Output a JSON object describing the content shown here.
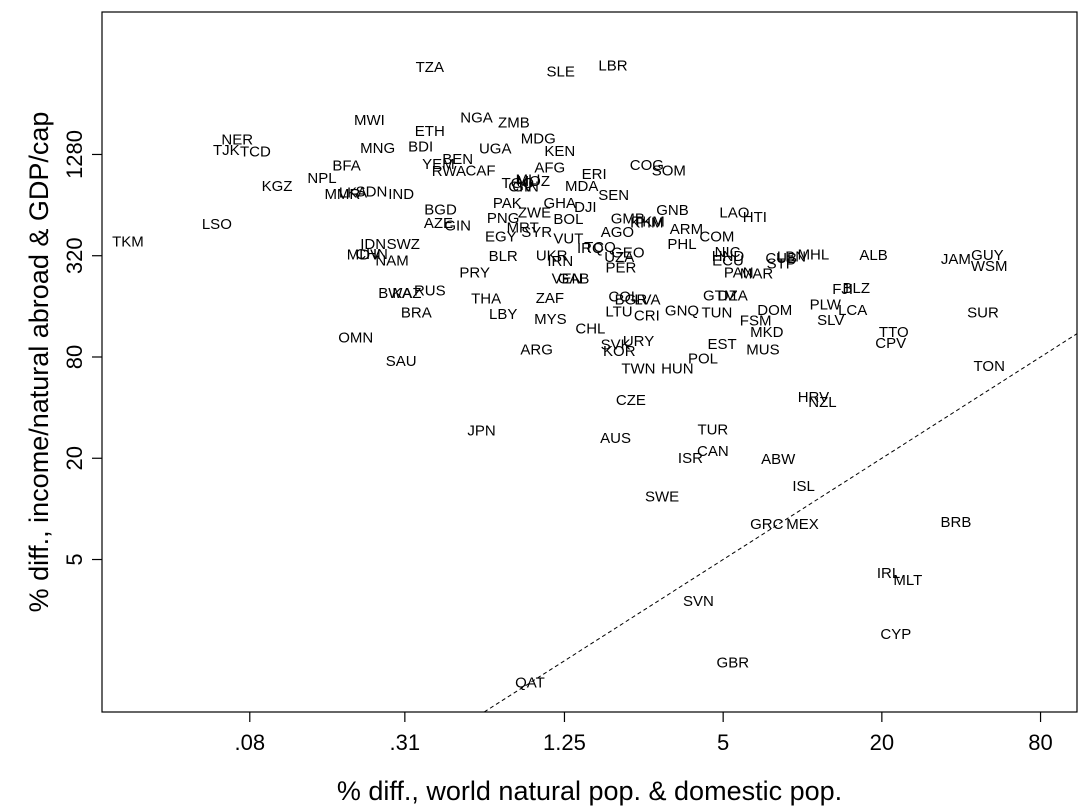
{
  "chart_data": {
    "type": "scatter",
    "title": "",
    "xlabel": "% diff., world natural pop. & domestic pop.",
    "ylabel": "% diff., income/natural abroad & GDP/cap",
    "x_scale": "log",
    "y_scale": "log",
    "xlim": [
      0.022,
      110
    ],
    "ylim": [
      0.62,
      9000
    ],
    "x_ticks": [
      0.08,
      0.31,
      1.25,
      5,
      20,
      80
    ],
    "x_tick_labels": [
      ".08",
      ".31",
      "1.25",
      "5",
      "20",
      "80"
    ],
    "y_ticks": [
      5,
      20,
      80,
      320,
      1280
    ],
    "y_tick_labels": [
      "5",
      "20",
      "80",
      "320",
      "1280"
    ],
    "grid": false,
    "legend": "none",
    "reference_line": {
      "style": "dashed",
      "description": "45-degree line y = x"
    },
    "points": [
      {
        "label": "TZA",
        "x": 0.3855,
        "y": 4220
      },
      {
        "label": "SLE",
        "x": 1.21,
        "y": 3955
      },
      {
        "label": "LBR",
        "x": 1.91,
        "y": 4310
      },
      {
        "label": "MWI",
        "x": 0.2275,
        "y": 2035
      },
      {
        "label": "NGA",
        "x": 0.58,
        "y": 2106
      },
      {
        "label": "ZMB",
        "x": 0.8035,
        "y": 1975
      },
      {
        "label": "NER",
        "x": 0.0717,
        "y": 1565
      },
      {
        "label": "ETH",
        "x": 0.3855,
        "y": 1754
      },
      {
        "label": "MDG",
        "x": 0.9946,
        "y": 1580
      },
      {
        "label": "TJK",
        "x": 0.0652,
        "y": 1351
      },
      {
        "label": "TCD",
        "x": 0.084,
        "y": 1320
      },
      {
        "label": "MNG",
        "x": 0.2444,
        "y": 1385
      },
      {
        "label": "BDI",
        "x": 0.3558,
        "y": 1413
      },
      {
        "label": "UGA",
        "x": 0.6828,
        "y": 1377
      },
      {
        "label": "KEN",
        "x": 1.2,
        "y": 1330
      },
      {
        "label": "BEN",
        "x": 0.4917,
        "y": 1196
      },
      {
        "label": "YEM",
        "x": 0.4157,
        "y": 1112
      },
      {
        "label": "BFA",
        "x": 0.1864,
        "y": 1091
      },
      {
        "label": "RWA",
        "x": 0.4555,
        "y": 1013
      },
      {
        "label": "CAF",
        "x": 0.6003,
        "y": 1019
      },
      {
        "label": "AFG",
        "x": 1.1,
        "y": 1065
      },
      {
        "label": "COG",
        "x": 2.567,
        "y": 1101
      },
      {
        "label": "SOM",
        "x": 3.11,
        "y": 1018
      },
      {
        "label": "ERI",
        "x": 1.62,
        "y": 976
      },
      {
        "label": "NPL",
        "x": 0.1503,
        "y": 922
      },
      {
        "label": "KGZ",
        "x": 0.1015,
        "y": 823
      },
      {
        "label": "TGO",
        "x": 0.8316,
        "y": 859
      },
      {
        "label": "MLI",
        "x": 0.9099,
        "y": 903
      },
      {
        "label": "MOZ",
        "x": 0.9523,
        "y": 886
      },
      {
        "label": "CIV",
        "x": 0.8529,
        "y": 820
      },
      {
        "label": "GIN_1",
        "x": 0.8897,
        "y": 818
      },
      {
        "label": "MDA",
        "x": 1.453,
        "y": 826
      },
      {
        "label": "LKA",
        "x": 0.1971,
        "y": 756
      },
      {
        "label": "SDN",
        "x": 0.2316,
        "y": 768
      },
      {
        "label": "MMR",
        "x": 0.1796,
        "y": 741
      },
      {
        "label": "IND",
        "x": 0.3001,
        "y": 741
      },
      {
        "label": "SEN",
        "x": 1.921,
        "y": 728
      },
      {
        "label": "PAK",
        "x": 0.7589,
        "y": 655
      },
      {
        "label": "GHA",
        "x": 1.2,
        "y": 652
      },
      {
        "label": "DJI",
        "x": 1.5,
        "y": 620
      },
      {
        "label": "ZWE",
        "x": 0.9624,
        "y": 574
      },
      {
        "label": "GNB",
        "x": 3.211,
        "y": 594
      },
      {
        "label": "BGD",
        "x": 0.4234,
        "y": 598
      },
      {
        "label": "LAO",
        "x": 5.516,
        "y": 574
      },
      {
        "label": "HTI",
        "x": 6.596,
        "y": 540
      },
      {
        "label": "PNG",
        "x": 0.7318,
        "y": 533
      },
      {
        "label": "BOL",
        "x": 1.294,
        "y": 525
      },
      {
        "label": "GMB",
        "x": 2.174,
        "y": 530
      },
      {
        "label": "KHM",
        "x": 2.567,
        "y": 501
      },
      {
        "label": "TKM_1",
        "x": 2.613,
        "y": 508
      },
      {
        "label": "LSO",
        "x": 0.06,
        "y": 491
      },
      {
        "label": "AZE",
        "x": 0.4157,
        "y": 499
      },
      {
        "label": "GIN",
        "x": 0.4917,
        "y": 482
      },
      {
        "label": "MRT",
        "x": 0.8678,
        "y": 467
      },
      {
        "label": "ARM",
        "x": 3.628,
        "y": 459
      },
      {
        "label": "SYR",
        "x": 0.9807,
        "y": 441
      },
      {
        "label": "AGO",
        "x": 1.985,
        "y": 440
      },
      {
        "label": "COM",
        "x": 4.735,
        "y": 414
      },
      {
        "label": "EGY",
        "x": 0.7171,
        "y": 414
      },
      {
        "label": "VUT",
        "x": 1.294,
        "y": 403
      },
      {
        "label": "TKM",
        "x": 0.0276,
        "y": 387
      },
      {
        "label": "IDN",
        "x": 0.2351,
        "y": 372
      },
      {
        "label": "SWZ",
        "x": 0.3057,
        "y": 372
      },
      {
        "label": "PHL",
        "x": 3.49,
        "y": 372
      },
      {
        "label": "TCQ",
        "x": 1.704,
        "y": 359
      },
      {
        "label": "IRQ",
        "x": 1.567,
        "y": 353
      },
      {
        "label": "GEO",
        "x": 2.174,
        "y": 333
      },
      {
        "label": "NIC",
        "x": 5.198,
        "y": 334
      },
      {
        "label": "MDV",
        "x": 0.2159,
        "y": 323
      },
      {
        "label": "CHN",
        "x": 0.2318,
        "y": 326
      },
      {
        "label": "UKR",
        "x": 1.118,
        "y": 318
      },
      {
        "label": "BLR",
        "x": 0.7318,
        "y": 316
      },
      {
        "label": "UZA",
        "x": 2.018,
        "y": 312
      },
      {
        "label": "HND",
        "x": 5.216,
        "y": 316
      },
      {
        "label": "MHL",
        "x": 11.0,
        "y": 323
      },
      {
        "label": "ALB",
        "x": 18.6,
        "y": 320
      },
      {
        "label": "JAM",
        "x": 38.2,
        "y": 303
      },
      {
        "label": "GUY",
        "x": 50.3,
        "y": 320
      },
      {
        "label": "CUB",
        "x": 8.3,
        "y": 308
      },
      {
        "label": "LBN",
        "x": 9.08,
        "y": 314
      },
      {
        "label": "NAM",
        "x": 0.2773,
        "y": 298
      },
      {
        "label": "IRN",
        "x": 1.205,
        "y": 295
      },
      {
        "label": "ECU",
        "x": 5.216,
        "y": 297
      },
      {
        "label": "STP",
        "x": 8.3,
        "y": 286
      },
      {
        "label": "WSM",
        "x": 51.1,
        "y": 276
      },
      {
        "label": "PER",
        "x": 2.047,
        "y": 271
      },
      {
        "label": "PRY",
        "x": 0.5705,
        "y": 253
      },
      {
        "label": "PAN",
        "x": 5.729,
        "y": 252
      },
      {
        "label": "MAR",
        "x": 6.693,
        "y": 250
      },
      {
        "label": "VEN",
        "x": 1.279,
        "y": 232
      },
      {
        "label": "GAB",
        "x": 1.354,
        "y": 232
      },
      {
        "label": "FJI",
        "x": 14.2,
        "y": 202
      },
      {
        "label": "BLZ",
        "x": 16.0,
        "y": 204
      },
      {
        "label": "RUS",
        "x": 0.3855,
        "y": 198
      },
      {
        "label": "BWA",
        "x": 0.2847,
        "y": 191
      },
      {
        "label": "KAZ",
        "x": 0.3155,
        "y": 191
      },
      {
        "label": "THA",
        "x": 0.6305,
        "y": 177
      },
      {
        "label": "ZAF",
        "x": 1.101,
        "y": 178
      },
      {
        "label": "COL",
        "x": 2.1,
        "y": 182
      },
      {
        "label": "BGR",
        "x": 2.234,
        "y": 174
      },
      {
        "label": "LVA",
        "x": 2.58,
        "y": 174
      },
      {
        "label": "GTM",
        "x": 4.85,
        "y": 184
      },
      {
        "label": "DZA",
        "x": 5.44,
        "y": 184
      },
      {
        "label": "PLW",
        "x": 12.2,
        "y": 163
      },
      {
        "label": "LCA",
        "x": 15.5,
        "y": 151
      },
      {
        "label": "DOM",
        "x": 7.85,
        "y": 151
      },
      {
        "label": "SUR",
        "x": 48.4,
        "y": 146
      },
      {
        "label": "GNQ",
        "x": 3.49,
        "y": 150
      },
      {
        "label": "TUN",
        "x": 4.735,
        "y": 146
      },
      {
        "label": "LTU",
        "x": 2.013,
        "y": 148
      },
      {
        "label": "CRI",
        "x": 2.567,
        "y": 140
      },
      {
        "label": "BRA",
        "x": 0.3427,
        "y": 146
      },
      {
        "label": "LBY",
        "x": 0.7318,
        "y": 143
      },
      {
        "label": "MYS",
        "x": 1.105,
        "y": 134
      },
      {
        "label": "FSM",
        "x": 6.64,
        "y": 131
      },
      {
        "label": "SLV",
        "x": 12.8,
        "y": 132
      },
      {
        "label": "CHL",
        "x": 1.568,
        "y": 117
      },
      {
        "label": "MKD",
        "x": 7.32,
        "y": 112
      },
      {
        "label": "TTO",
        "x": 22.2,
        "y": 112
      },
      {
        "label": "OMN",
        "x": 0.2018,
        "y": 104
      },
      {
        "label": "URY",
        "x": 2.388,
        "y": 99
      },
      {
        "label": "EST",
        "x": 4.956,
        "y": 95
      },
      {
        "label": "SVK",
        "x": 1.954,
        "y": 94
      },
      {
        "label": "CPV",
        "x": 21.6,
        "y": 96
      },
      {
        "label": "ARG",
        "x": 0.9807,
        "y": 88
      },
      {
        "label": "KOR",
        "x": 2.018,
        "y": 86
      },
      {
        "label": "MUS",
        "x": 7.08,
        "y": 88
      },
      {
        "label": "POL",
        "x": 4.191,
        "y": 78
      },
      {
        "label": "SAU",
        "x": 0.3001,
        "y": 75
      },
      {
        "label": "TON",
        "x": 51.1,
        "y": 70
      },
      {
        "label": "TWN",
        "x": 2.385,
        "y": 68
      },
      {
        "label": "HUN",
        "x": 3.351,
        "y": 68
      },
      {
        "label": "HRV",
        "x": 11.0,
        "y": 46
      },
      {
        "label": "NZL",
        "x": 11.9,
        "y": 43
      },
      {
        "label": "CZE",
        "x": 2.234,
        "y": 44
      },
      {
        "label": "JPN",
        "x": 0.6061,
        "y": 29
      },
      {
        "label": "TUR",
        "x": 4.57,
        "y": 29.4
      },
      {
        "label": "AUS",
        "x": 1.954,
        "y": 26.2
      },
      {
        "label": "CAN",
        "x": 4.57,
        "y": 22
      },
      {
        "label": "ISR",
        "x": 3.757,
        "y": 19.9
      },
      {
        "label": "ABW",
        "x": 8.09,
        "y": 19.6
      },
      {
        "label": "ISL",
        "x": 10.1,
        "y": 13.6
      },
      {
        "label": "SWE",
        "x": 2.932,
        "y": 11.8
      },
      {
        "label": "GRC",
        "x": 7.32,
        "y": 8.1
      },
      {
        "label": "MEX",
        "x": 10.0,
        "y": 8.1
      },
      {
        "label": "BRB",
        "x": 38.2,
        "y": 8.3
      },
      {
        "label": "IRL",
        "x": 21.2,
        "y": 4.14
      },
      {
        "label": "MLT",
        "x": 25.1,
        "y": 3.75
      },
      {
        "label": "SVN",
        "x": 4.03,
        "y": 2.82
      },
      {
        "label": "CYP",
        "x": 22.6,
        "y": 1.79
      },
      {
        "label": "GBR",
        "x": 5.44,
        "y": 1.21
      },
      {
        "label": "QAT",
        "x": 0.9247,
        "y": 0.92
      }
    ]
  }
}
